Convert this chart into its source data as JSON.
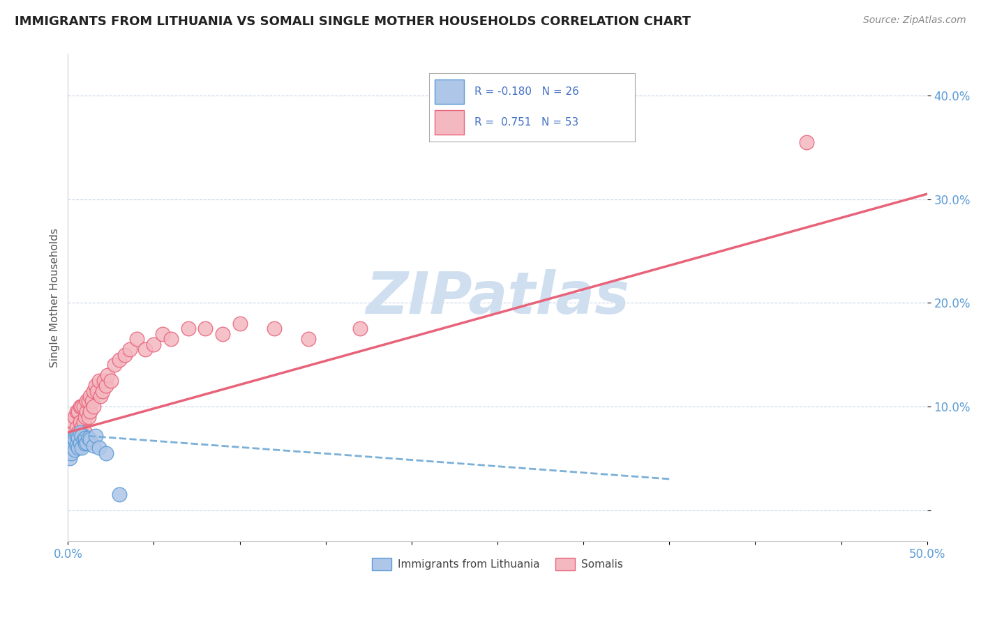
{
  "title": "IMMIGRANTS FROM LITHUANIA VS SOMALI SINGLE MOTHER HOUSEHOLDS CORRELATION CHART",
  "source": "Source: ZipAtlas.com",
  "ylabel": "Single Mother Households",
  "xlim": [
    0.0,
    0.5
  ],
  "ylim": [
    -0.03,
    0.44
  ],
  "yticks": [
    0.0,
    0.1,
    0.2,
    0.3,
    0.4
  ],
  "ytick_labels": [
    "",
    "10.0%",
    "20.0%",
    "30.0%",
    "40.0%"
  ],
  "xticks": [
    0.0,
    0.05,
    0.1,
    0.15,
    0.2,
    0.25,
    0.3,
    0.35,
    0.4,
    0.45,
    0.5
  ],
  "xtick_labels": [
    "0.0%",
    "",
    "",
    "",
    "",
    "",
    "",
    "",
    "",
    "",
    "50.0%"
  ],
  "legend_R1": "-0.180",
  "legend_N1": "26",
  "legend_R2": "0.751",
  "legend_N2": "53",
  "color_blue": "#aec6e8",
  "color_blue_edge": "#5b9bd5",
  "color_pink": "#f4b8c1",
  "color_pink_edge": "#e8637a",
  "color_line_blue": "#7ab0d8",
  "color_line_pink": "#e8637a",
  "watermark": "ZIPatlas",
  "watermark_color": "#d0dff0",
  "blue_points_x": [
    0.001,
    0.002,
    0.002,
    0.003,
    0.003,
    0.004,
    0.004,
    0.005,
    0.005,
    0.006,
    0.006,
    0.007,
    0.007,
    0.008,
    0.008,
    0.009,
    0.01,
    0.01,
    0.011,
    0.012,
    0.013,
    0.015,
    0.016,
    0.018,
    0.022,
    0.03
  ],
  "blue_points_y": [
    0.05,
    0.055,
    0.065,
    0.06,
    0.07,
    0.058,
    0.068,
    0.063,
    0.072,
    0.06,
    0.07,
    0.065,
    0.075,
    0.06,
    0.072,
    0.068,
    0.064,
    0.07,
    0.065,
    0.07,
    0.068,
    0.062,
    0.072,
    0.06,
    0.055,
    0.015
  ],
  "pink_points_x": [
    0.001,
    0.002,
    0.003,
    0.003,
    0.004,
    0.004,
    0.005,
    0.005,
    0.006,
    0.006,
    0.007,
    0.007,
    0.008,
    0.008,
    0.009,
    0.009,
    0.01,
    0.01,
    0.011,
    0.011,
    0.012,
    0.012,
    0.013,
    0.013,
    0.014,
    0.015,
    0.015,
    0.016,
    0.017,
    0.018,
    0.019,
    0.02,
    0.021,
    0.022,
    0.023,
    0.025,
    0.027,
    0.03,
    0.033,
    0.036,
    0.04,
    0.045,
    0.05,
    0.055,
    0.06,
    0.07,
    0.08,
    0.09,
    0.1,
    0.12,
    0.14,
    0.17,
    0.43
  ],
  "pink_points_y": [
    0.07,
    0.065,
    0.075,
    0.085,
    0.07,
    0.09,
    0.08,
    0.095,
    0.075,
    0.095,
    0.085,
    0.1,
    0.08,
    0.1,
    0.085,
    0.1,
    0.075,
    0.09,
    0.095,
    0.105,
    0.09,
    0.105,
    0.095,
    0.11,
    0.105,
    0.1,
    0.115,
    0.12,
    0.115,
    0.125,
    0.11,
    0.115,
    0.125,
    0.12,
    0.13,
    0.125,
    0.14,
    0.145,
    0.15,
    0.155,
    0.165,
    0.155,
    0.16,
    0.17,
    0.165,
    0.175,
    0.175,
    0.17,
    0.18,
    0.175,
    0.165,
    0.175,
    0.355
  ],
  "blue_line_x": [
    0.0,
    0.35
  ],
  "blue_line_y": [
    0.073,
    0.03
  ],
  "pink_line_x": [
    0.0,
    0.5
  ],
  "pink_line_y": [
    0.075,
    0.305
  ]
}
